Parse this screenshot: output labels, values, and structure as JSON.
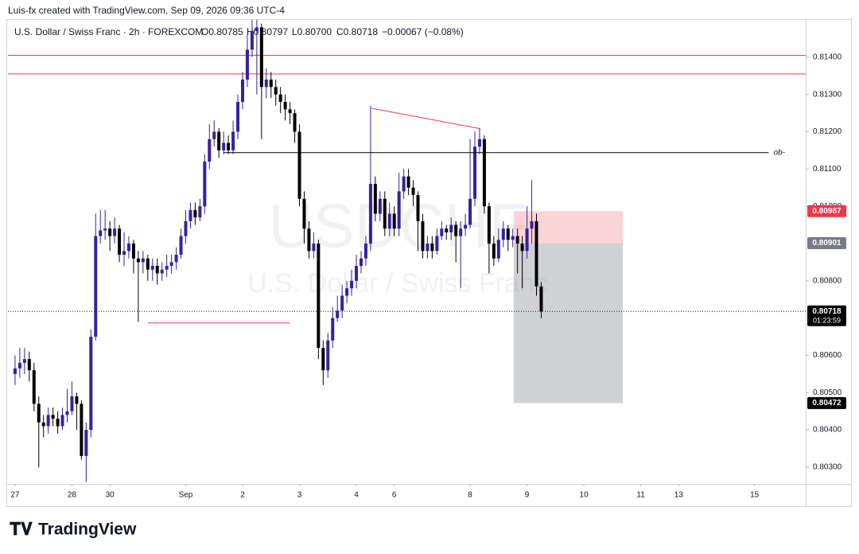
{
  "header": {
    "credit": "Luis-fx created with TradingView.com, Sep 09, 2026 09:36 UTC-4",
    "symbol": "U.S. Dollar / Swiss Franc · 2h · FOREXCOM",
    "open": "O0.80785",
    "high": "H0.80797",
    "low": "L0.80700",
    "close": "C0.80718",
    "change": "−0.00067 (−0.08%)"
  },
  "footer": {
    "brand": "TradingView"
  },
  "chart_data": {
    "type": "candlestick",
    "watermark": "USDCHF",
    "watermark_sub": "U.S. Dollar / Swiss Franc",
    "up_color": "#3a1fa0",
    "down_color": "#000000",
    "xlim": [
      -1.5,
      166.8
    ],
    "xticks": [
      {
        "value": 0,
        "label": "27"
      },
      {
        "value": 12,
        "label": "28"
      },
      {
        "value": 20,
        "label": "30"
      },
      {
        "value": 36,
        "label": "Sep"
      },
      {
        "value": 48,
        "label": "2"
      },
      {
        "value": 60,
        "label": "3"
      },
      {
        "value": 72,
        "label": "4"
      },
      {
        "value": 80,
        "label": "6"
      },
      {
        "value": 96,
        "label": "8"
      },
      {
        "value": 108,
        "label": "9"
      },
      {
        "value": 120,
        "label": "10"
      },
      {
        "value": 132,
        "label": "11"
      },
      {
        "value": 140,
        "label": "13"
      },
      {
        "value": 156,
        "label": "15"
      }
    ],
    "ylim": [
      0.80255,
      0.815
    ],
    "yticks": [
      {
        "value": 0.814,
        "label": "0.81400"
      },
      {
        "value": 0.813,
        "label": "0.81300"
      },
      {
        "value": 0.812,
        "label": "0.81200"
      },
      {
        "value": 0.811,
        "label": "0.81100"
      },
      {
        "value": 0.81,
        "label": "0.81000"
      },
      {
        "value": 0.808,
        "label": "0.80800"
      },
      {
        "value": 0.806,
        "label": "0.80600"
      },
      {
        "value": 0.805,
        "label": "0.80500"
      },
      {
        "value": 0.804,
        "label": "0.80400"
      },
      {
        "value": 0.803,
        "label": "0.80300"
      }
    ],
    "ohlc": [
      [
        0.8055,
        0.806,
        0.8052,
        0.80565
      ],
      [
        0.80565,
        0.8062,
        0.8054,
        0.8058
      ],
      [
        0.8058,
        0.8062,
        0.8055,
        0.8059
      ],
      [
        0.8059,
        0.8061,
        0.8053,
        0.8056
      ],
      [
        0.8056,
        0.8058,
        0.8045,
        0.8047
      ],
      [
        0.8047,
        0.8049,
        0.803,
        0.8042
      ],
      [
        0.8042,
        0.8044,
        0.8038,
        0.8041
      ],
      [
        0.8041,
        0.8046,
        0.8039,
        0.8044
      ],
      [
        0.8044,
        0.8046,
        0.8041,
        0.8043
      ],
      [
        0.8043,
        0.8045,
        0.8039,
        0.8041
      ],
      [
        0.8041,
        0.8046,
        0.804,
        0.8044
      ],
      [
        0.8044,
        0.8051,
        0.8042,
        0.8045
      ],
      [
        0.8045,
        0.8053,
        0.8044,
        0.8049
      ],
      [
        0.8049,
        0.805,
        0.804,
        0.8047
      ],
      [
        0.8047,
        0.8048,
        0.8032,
        0.8033
      ],
      [
        0.8033,
        0.8042,
        0.8026,
        0.804
      ],
      [
        0.804,
        0.8067,
        0.8038,
        0.8065
      ],
      [
        0.8065,
        0.8098,
        0.8064,
        0.8092
      ],
      [
        0.8092,
        0.8099,
        0.809,
        0.80935
      ],
      [
        0.80935,
        0.8099,
        0.8091,
        0.8094
      ],
      [
        0.8094,
        0.8096,
        0.8088,
        0.8092
      ],
      [
        0.8092,
        0.8097,
        0.809,
        0.8094
      ],
      [
        0.8094,
        0.8095,
        0.8085,
        0.8087
      ],
      [
        0.8087,
        0.8093,
        0.8084,
        0.8088
      ],
      [
        0.8088,
        0.8092,
        0.8086,
        0.809
      ],
      [
        0.809,
        0.8091,
        0.8082,
        0.8086
      ],
      [
        0.8086,
        0.8088,
        0.8069,
        0.8085
      ],
      [
        0.8085,
        0.8088,
        0.8082,
        0.8086
      ],
      [
        0.8086,
        0.8087,
        0.808,
        0.8083
      ],
      [
        0.8083,
        0.8086,
        0.808,
        0.8084
      ],
      [
        0.8084,
        0.8086,
        0.8079,
        0.8082
      ],
      [
        0.8082,
        0.8085,
        0.808,
        0.8083
      ],
      [
        0.8083,
        0.8087,
        0.8081,
        0.8084
      ],
      [
        0.8084,
        0.8087,
        0.8082,
        0.8085
      ],
      [
        0.8085,
        0.8089,
        0.8083,
        0.8087
      ],
      [
        0.8087,
        0.8094,
        0.8086,
        0.8092
      ],
      [
        0.8092,
        0.8099,
        0.809,
        0.8096
      ],
      [
        0.8096,
        0.8101,
        0.8094,
        0.8099
      ],
      [
        0.8099,
        0.8101,
        0.8095,
        0.8097
      ],
      [
        0.8097,
        0.8102,
        0.8096,
        0.81
      ],
      [
        0.81,
        0.8114,
        0.8098,
        0.8112
      ],
      [
        0.8112,
        0.8122,
        0.811,
        0.8118
      ],
      [
        0.8118,
        0.8123,
        0.8116,
        0.812
      ],
      [
        0.812,
        0.8121,
        0.8113,
        0.8115
      ],
      [
        0.8115,
        0.812,
        0.8114,
        0.8117
      ],
      [
        0.8117,
        0.8119,
        0.8114,
        0.8115
      ],
      [
        0.8115,
        0.8123,
        0.8114,
        0.812
      ],
      [
        0.812,
        0.813,
        0.8118,
        0.8128
      ],
      [
        0.8128,
        0.8136,
        0.8126,
        0.8134
      ],
      [
        0.8134,
        0.8146,
        0.8132,
        0.8142
      ],
      [
        0.8142,
        0.815,
        0.814,
        0.8147
      ],
      [
        0.8147,
        0.815,
        0.813,
        0.8148
      ],
      [
        0.8148,
        0.8149,
        0.8118,
        0.8132
      ],
      [
        0.8132,
        0.8137,
        0.8129,
        0.8134
      ],
      [
        0.8134,
        0.8136,
        0.8129,
        0.8132
      ],
      [
        0.8132,
        0.8134,
        0.8127,
        0.813
      ],
      [
        0.813,
        0.8132,
        0.8125,
        0.8128
      ],
      [
        0.8128,
        0.813,
        0.8123,
        0.8126
      ],
      [
        0.8126,
        0.8128,
        0.8122,
        0.8125
      ],
      [
        0.8125,
        0.8126,
        0.8117,
        0.812
      ],
      [
        0.812,
        0.8122,
        0.81,
        0.8102
      ],
      [
        0.8102,
        0.8104,
        0.809,
        0.8094
      ],
      [
        0.8094,
        0.8096,
        0.8086,
        0.8088
      ],
      [
        0.8088,
        0.8093,
        0.8086,
        0.809
      ],
      [
        0.809,
        0.8091,
        0.8059,
        0.8062
      ],
      [
        0.8062,
        0.8064,
        0.8052,
        0.8056
      ],
      [
        0.8056,
        0.8066,
        0.8054,
        0.8064
      ],
      [
        0.8064,
        0.8073,
        0.8062,
        0.807
      ],
      [
        0.807,
        0.8076,
        0.8069,
        0.8072
      ],
      [
        0.8072,
        0.8079,
        0.807,
        0.8076
      ],
      [
        0.8076,
        0.808,
        0.8074,
        0.8078
      ],
      [
        0.8078,
        0.8083,
        0.8076,
        0.808
      ],
      [
        0.808,
        0.8087,
        0.8078,
        0.8084
      ],
      [
        0.8084,
        0.8088,
        0.8082,
        0.8086
      ],
      [
        0.8086,
        0.8092,
        0.8084,
        0.809
      ],
      [
        0.809,
        0.8127,
        0.8088,
        0.8106
      ],
      [
        0.8106,
        0.8108,
        0.8096,
        0.8098
      ],
      [
        0.8098,
        0.8104,
        0.8096,
        0.8102
      ],
      [
        0.8102,
        0.8104,
        0.8092,
        0.8094
      ],
      [
        0.8094,
        0.8101,
        0.8092,
        0.8098
      ],
      [
        0.8098,
        0.81,
        0.8092,
        0.8094
      ],
      [
        0.8094,
        0.8109,
        0.8092,
        0.8104
      ],
      [
        0.8104,
        0.811,
        0.8102,
        0.8108
      ],
      [
        0.8108,
        0.811,
        0.8103,
        0.8105
      ],
      [
        0.8105,
        0.8107,
        0.81,
        0.8103
      ],
      [
        0.8103,
        0.8104,
        0.8088,
        0.8096
      ],
      [
        0.8096,
        0.8098,
        0.8086,
        0.8088
      ],
      [
        0.8088,
        0.8092,
        0.8086,
        0.809
      ],
      [
        0.809,
        0.8092,
        0.8086,
        0.8088
      ],
      [
        0.8088,
        0.8094,
        0.8087,
        0.8092
      ],
      [
        0.8092,
        0.8096,
        0.8091,
        0.8094
      ],
      [
        0.8094,
        0.8095,
        0.8091,
        0.8093
      ],
      [
        0.8093,
        0.8097,
        0.8091,
        0.8095
      ],
      [
        0.8095,
        0.8096,
        0.8085,
        0.8092
      ],
      [
        0.8092,
        0.8096,
        0.8078,
        0.8094
      ],
      [
        0.8094,
        0.8098,
        0.8092,
        0.8095
      ],
      [
        0.8095,
        0.8118,
        0.8094,
        0.8102
      ],
      [
        0.8102,
        0.812,
        0.81,
        0.8116
      ],
      [
        0.8116,
        0.8121,
        0.8114,
        0.8118
      ],
      [
        0.8118,
        0.8119,
        0.8098,
        0.81
      ],
      [
        0.81,
        0.8101,
        0.8082,
        0.809
      ],
      [
        0.809,
        0.8092,
        0.8084,
        0.8086
      ],
      [
        0.8086,
        0.8094,
        0.8085,
        0.8091
      ],
      [
        0.8091,
        0.8096,
        0.8089,
        0.8094
      ],
      [
        0.8094,
        0.8095,
        0.8088,
        0.8091
      ],
      [
        0.8091,
        0.8094,
        0.8089,
        0.8092
      ],
      [
        0.8092,
        0.8094,
        0.8082,
        0.809
      ],
      [
        0.809,
        0.8092,
        0.8078,
        0.8088
      ],
      [
        0.8088,
        0.81,
        0.8086,
        0.8094
      ],
      [
        0.8094,
        0.8107,
        0.809,
        0.8096
      ],
      [
        0.8096,
        0.8098,
        0.8076,
        0.80785
      ],
      [
        0.80785,
        0.80797,
        0.807,
        0.80718
      ]
    ],
    "hlines": [
      {
        "value": 0.81405,
        "color": "#e5405e"
      },
      {
        "value": 0.81355,
        "color": "#e5405e"
      }
    ],
    "segments": [
      {
        "x": [
          44,
          159
        ],
        "y": [
          0.81144,
          0.81144
        ],
        "color": "#000000",
        "label": "ob-"
      },
      {
        "x": [
          75.2,
          98.2
        ],
        "y": [
          0.81263,
          0.81208
        ],
        "color": "#f23645"
      },
      {
        "x": [
          28,
          58
        ],
        "y": [
          0.80687,
          0.80687
        ],
        "color": "#f23645"
      }
    ],
    "position": {
      "x": [
        105.2,
        128.2
      ],
      "stop": 0.80987,
      "entry": 0.80901,
      "target": 0.80472
    },
    "last_price": 0.80718,
    "price_labels": [
      {
        "value": 0.80987,
        "label": "0.80987",
        "color": "#f23645"
      },
      {
        "value": 0.80901,
        "label": "0.80901",
        "color": "#787b86"
      },
      {
        "value": 0.80718,
        "label": "0.80718",
        "color": "#000000",
        "sub": "01:23:59"
      },
      {
        "value": 0.80472,
        "label": "0.80472",
        "color": "#000000"
      }
    ]
  }
}
